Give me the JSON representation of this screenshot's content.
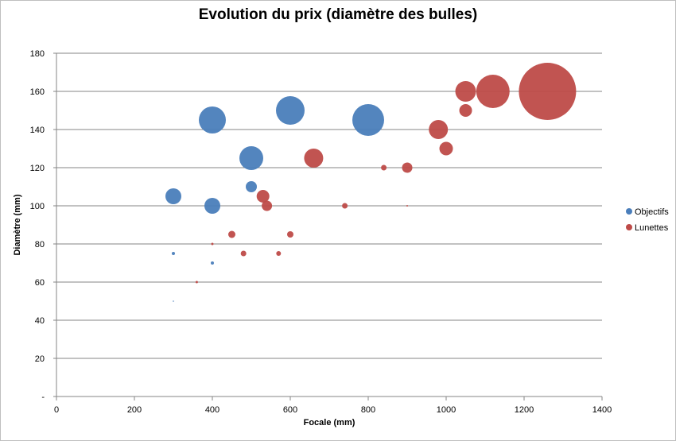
{
  "chart_data": {
    "type": "scatter",
    "title": "Evolution du prix  (diamètre des bulles)",
    "xlabel": "Focale (mm)",
    "ylabel": "Diamètre (mm)",
    "xlim": [
      0,
      1400
    ],
    "ylim": [
      0,
      180
    ],
    "x_ticks": [
      "0",
      "200",
      "400",
      "600",
      "800",
      "1000",
      "1200",
      "1400"
    ],
    "y_ticks": [
      "-",
      "20",
      "40",
      "60",
      "80",
      "100",
      "120",
      "140",
      "160",
      "180"
    ],
    "legend_position": "right",
    "series": [
      {
        "name": "Objectifs",
        "color": "#4a7ebb",
        "points": [
          {
            "x": 300,
            "y": 105,
            "size": 20
          },
          {
            "x": 400,
            "y": 145,
            "size": 34
          },
          {
            "x": 400,
            "y": 100,
            "size": 20
          },
          {
            "x": 500,
            "y": 125,
            "size": 30
          },
          {
            "x": 500,
            "y": 110,
            "size": 14
          },
          {
            "x": 600,
            "y": 150,
            "size": 36
          },
          {
            "x": 800,
            "y": 145,
            "size": 40
          },
          {
            "x": 300,
            "y": 75,
            "size": 4
          },
          {
            "x": 400,
            "y": 70,
            "size": 4
          },
          {
            "x": 300,
            "y": 50,
            "size": 1.5
          }
        ]
      },
      {
        "name": "Lunettes",
        "color": "#be4b48",
        "points": [
          {
            "x": 360,
            "y": 60,
            "size": 3
          },
          {
            "x": 400,
            "y": 80,
            "size": 3
          },
          {
            "x": 450,
            "y": 85,
            "size": 9
          },
          {
            "x": 480,
            "y": 75,
            "size": 7
          },
          {
            "x": 530,
            "y": 105,
            "size": 16
          },
          {
            "x": 540,
            "y": 100,
            "size": 13
          },
          {
            "x": 570,
            "y": 75,
            "size": 6
          },
          {
            "x": 600,
            "y": 85,
            "size": 8
          },
          {
            "x": 660,
            "y": 125,
            "size": 24
          },
          {
            "x": 740,
            "y": 100,
            "size": 7
          },
          {
            "x": 840,
            "y": 120,
            "size": 7
          },
          {
            "x": 900,
            "y": 120,
            "size": 13
          },
          {
            "x": 900,
            "y": 100,
            "size": 2
          },
          {
            "x": 980,
            "y": 140,
            "size": 24
          },
          {
            "x": 1000,
            "y": 130,
            "size": 17
          },
          {
            "x": 1050,
            "y": 150,
            "size": 16
          },
          {
            "x": 1050,
            "y": 160,
            "size": 26
          },
          {
            "x": 1120,
            "y": 160,
            "size": 42
          },
          {
            "x": 1260,
            "y": 160,
            "size": 72
          }
        ]
      }
    ]
  }
}
